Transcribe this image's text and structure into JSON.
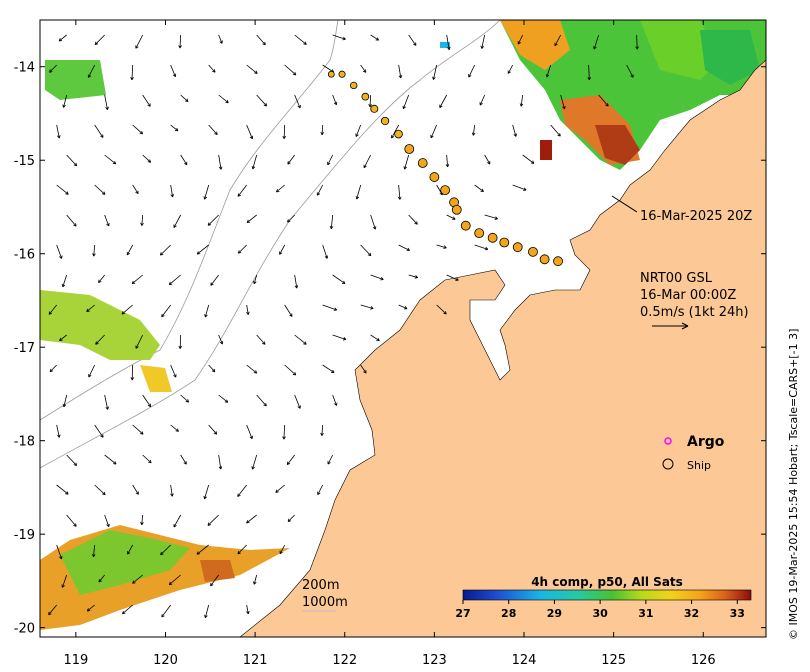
{
  "map": {
    "lat_ticks": [
      "-14",
      "-15",
      "-16",
      "-17",
      "-18",
      "-19",
      "-20"
    ],
    "lon_ticks": [
      "119",
      "120",
      "121",
      "122",
      "123",
      "124",
      "125",
      "126"
    ],
    "lat_range": [
      -20.1,
      -13.5
    ],
    "lon_range": [
      118.6,
      126.7
    ],
    "land_color": "#fcc896",
    "frame_color": "#000000"
  },
  "annotations": {
    "ship_time_label": "16-Mar-2025 20Z",
    "current_product": "NRT00 GSL",
    "current_time": "16-Mar 00:00Z",
    "current_scale": "0.5m/s (1kt 24h)",
    "depth_200": "200m",
    "depth_1000": "1000m"
  },
  "legend": {
    "argo_label": "Argo",
    "ship_label": "Ship",
    "argo_color": "#ff00ff"
  },
  "colorbar": {
    "title": "4h comp, p50, All Sats",
    "ticks": [
      "27",
      "28",
      "29",
      "30",
      "31",
      "32",
      "33"
    ],
    "min": 27,
    "max": 33.3
  },
  "credit": "© IMOS 19-Mar-2025 15:54 Hobart; Tscale=CARS+[-1 3]",
  "ship_track": [
    {
      "lon": 121.85,
      "lat": -14.08
    },
    {
      "lon": 121.97,
      "lat": -14.08
    },
    {
      "lon": 122.1,
      "lat": -14.2
    },
    {
      "lon": 122.23,
      "lat": -14.32
    },
    {
      "lon": 122.33,
      "lat": -14.45
    },
    {
      "lon": 122.45,
      "lat": -14.58
    },
    {
      "lon": 122.6,
      "lat": -14.72
    },
    {
      "lon": 122.72,
      "lat": -14.88
    },
    {
      "lon": 122.87,
      "lat": -15.03
    },
    {
      "lon": 123.0,
      "lat": -15.18
    },
    {
      "lon": 123.12,
      "lat": -15.32
    },
    {
      "lon": 123.22,
      "lat": -15.45
    },
    {
      "lon": 123.25,
      "lat": -15.53
    },
    {
      "lon": 123.35,
      "lat": -15.7
    },
    {
      "lon": 123.5,
      "lat": -15.78
    },
    {
      "lon": 123.65,
      "lat": -15.83
    },
    {
      "lon": 123.78,
      "lat": -15.88
    },
    {
      "lon": 123.93,
      "lat": -15.93
    },
    {
      "lon": 124.1,
      "lat": -15.98
    },
    {
      "lon": 124.23,
      "lat": -16.06
    },
    {
      "lon": 124.38,
      "lat": -16.08
    }
  ]
}
